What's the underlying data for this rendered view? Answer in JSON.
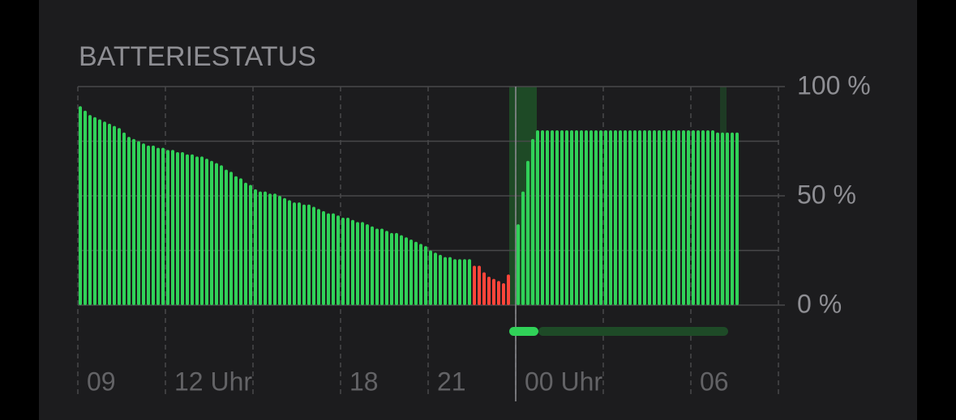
{
  "chart_data": {
    "type": "bar",
    "title": "BATTERIESTATUS",
    "xlim": [
      0,
      1440
    ],
    "xticks": [
      {
        "value": 0,
        "label": "09"
      },
      {
        "value": 180,
        "label": "12 Uhr"
      },
      {
        "value": 540,
        "label": "18"
      },
      {
        "value": 720,
        "label": "21"
      },
      {
        "value": 900,
        "label": "00 Uhr"
      },
      {
        "value": 1260,
        "label": "06"
      }
    ],
    "minor_xticks": [
      360,
      1080,
      1440
    ],
    "ylim": [
      0,
      100
    ],
    "yticks": [
      {
        "value": 0,
        "label": "0 %"
      },
      {
        "value": 50,
        "label": "50 %"
      },
      {
        "value": 100,
        "label": "100 %"
      }
    ],
    "minor_yticks": [
      25,
      75
    ],
    "grid": true,
    "color": "#30d158",
    "low_threshold": 20,
    "low_color": "#ff453a",
    "x": [
      5,
      15,
      25,
      35,
      45,
      55,
      65,
      75,
      85,
      95,
      105,
      115,
      125,
      135,
      145,
      155,
      165,
      175,
      185,
      195,
      205,
      215,
      225,
      235,
      245,
      255,
      265,
      275,
      285,
      295,
      305,
      315,
      325,
      335,
      345,
      355,
      365,
      375,
      385,
      395,
      405,
      415,
      425,
      435,
      445,
      455,
      465,
      475,
      485,
      495,
      505,
      515,
      525,
      535,
      545,
      555,
      565,
      575,
      585,
      595,
      605,
      615,
      625,
      635,
      645,
      655,
      665,
      675,
      685,
      695,
      705,
      715,
      725,
      735,
      745,
      755,
      765,
      775,
      785,
      795,
      805,
      815,
      825,
      835,
      845,
      855,
      865,
      875,
      885,
      905,
      915,
      925,
      935,
      945,
      955,
      965,
      975,
      985,
      995,
      1005,
      1015,
      1025,
      1035,
      1045,
      1055,
      1065,
      1075,
      1085,
      1095,
      1105,
      1115,
      1125,
      1135,
      1145,
      1155,
      1165,
      1175,
      1185,
      1195,
      1205,
      1215,
      1225,
      1235,
      1245,
      1255,
      1265,
      1275,
      1285,
      1295,
      1305,
      1315,
      1325,
      1335,
      1345,
      1355
    ],
    "values": [
      91,
      89,
      87,
      86,
      85,
      84,
      83,
      82,
      81,
      79,
      77,
      76,
      75,
      74,
      73,
      73,
      72,
      72,
      71,
      71,
      70,
      70,
      69,
      69,
      68,
      68,
      67,
      66,
      65,
      64,
      62,
      61,
      59,
      58,
      56,
      55,
      53,
      52,
      52,
      51,
      51,
      50,
      49,
      48,
      47,
      47,
      46,
      46,
      45,
      44,
      43,
      42,
      42,
      41,
      40,
      40,
      39,
      38,
      38,
      37,
      36,
      35,
      35,
      34,
      33,
      33,
      32,
      31,
      30,
      29,
      28,
      27,
      25,
      24,
      23,
      22,
      22,
      21,
      21,
      21,
      21,
      18,
      18,
      15,
      13,
      12,
      11,
      10,
      14,
      37,
      52,
      66,
      76,
      80,
      80,
      80,
      80,
      80,
      80,
      80,
      80,
      80,
      80,
      80,
      80,
      80,
      80,
      80,
      80,
      80,
      80,
      80,
      80,
      80,
      80,
      80,
      80,
      80,
      80,
      80,
      80,
      80,
      80,
      80,
      80,
      80,
      80,
      80,
      80,
      80,
      79,
      79,
      79,
      79,
      79
    ]
  }
}
